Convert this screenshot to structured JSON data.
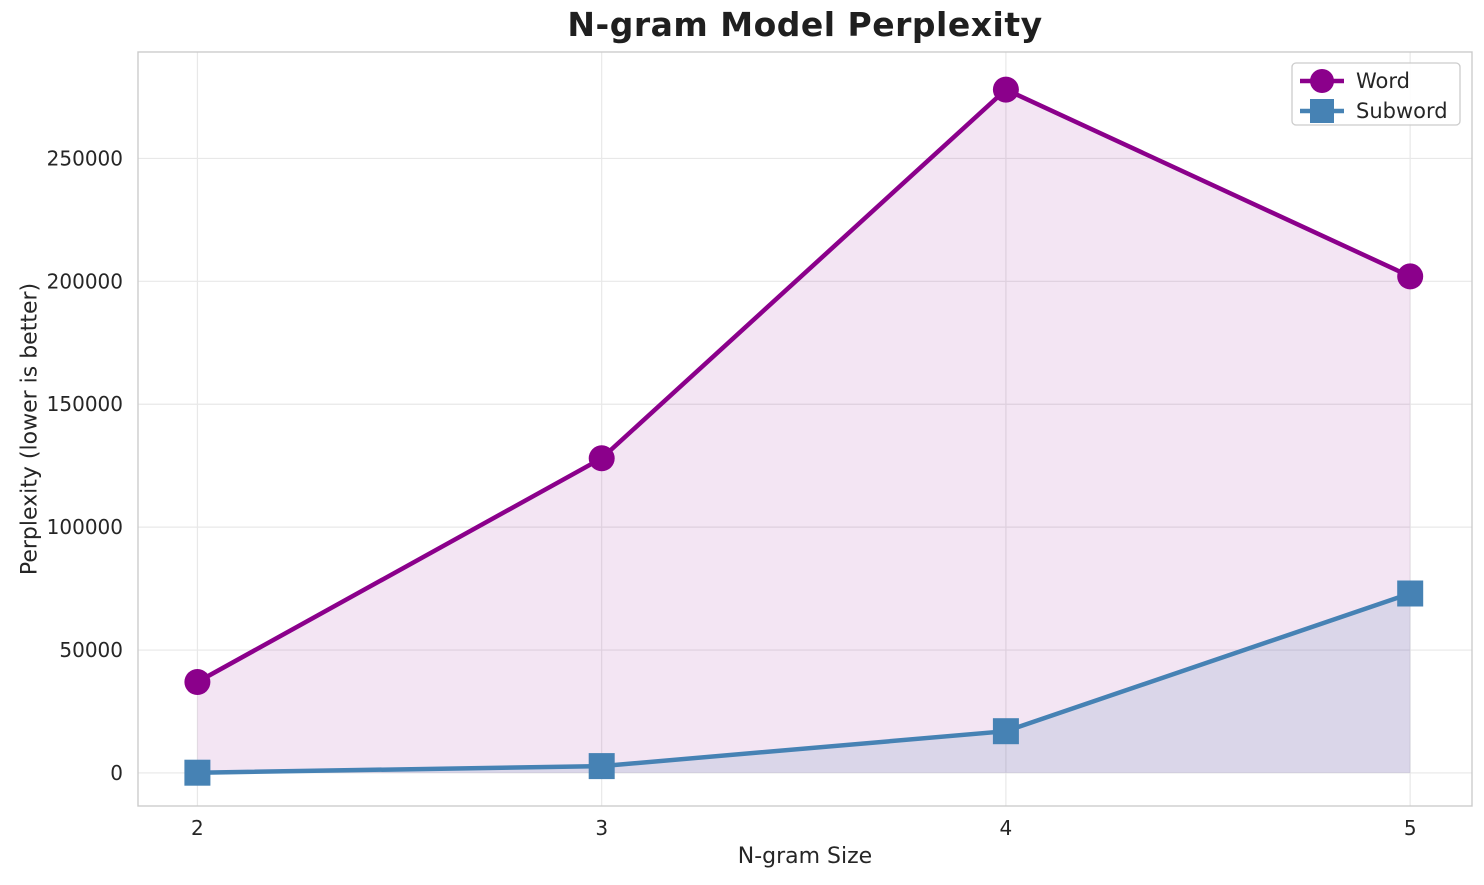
{
  "chart_data": {
    "type": "line",
    "title": "N-gram Model Perplexity",
    "xlabel": "N-gram Size",
    "ylabel": "Perplexity (lower is better)",
    "x": [
      2,
      3,
      4,
      5
    ],
    "x_tick_labels": [
      "2",
      "3",
      "4",
      "5"
    ],
    "y_ticks": [
      0,
      50000,
      100000,
      150000,
      200000,
      250000
    ],
    "xlim": [
      1.853,
      5.153
    ],
    "ylim": [
      -13450,
      293300
    ],
    "grid": true,
    "area_fill": true,
    "area_baseline": 0,
    "legend_position": "upper right",
    "series": [
      {
        "name": "Word",
        "marker": "circle",
        "color": "#8B008B",
        "fill_alpha": 0.1,
        "values": [
          37000,
          128000,
          278000,
          202000
        ]
      },
      {
        "name": "Subword",
        "marker": "square",
        "color": "#4682B4",
        "fill_alpha": 0.14,
        "values": [
          100,
          2800,
          17000,
          73000
        ]
      }
    ],
    "style": {
      "grid_color": "#e8e8e8",
      "spine_color": "#cccccc",
      "text_color": "#262626",
      "background": "#ffffff"
    }
  }
}
